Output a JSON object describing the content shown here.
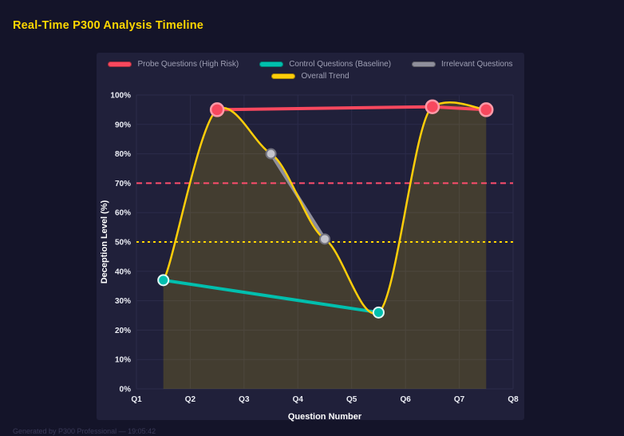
{
  "page": {
    "title": "Real-Time P300 Analysis Timeline",
    "footer": "Generated by P300 Professional — 19:05:42"
  },
  "theme": {
    "background": "#141429",
    "panel": "#20203a",
    "title": "#ffd700",
    "legend_text": "#9fa0b5",
    "tick_text": "#eceef5",
    "grid": "#2b2b4a",
    "footer_text": "#3a3a58"
  },
  "chart_data": {
    "type": "line",
    "title": "Real-Time P300 Analysis Timeline",
    "xlabel": "Question Number",
    "ylabel": "Deception Level (%)",
    "x_tick_labels": [
      "Q1",
      "Q2",
      "Q3",
      "Q4",
      "Q5",
      "Q6",
      "Q7",
      "Q8"
    ],
    "x_tick_values": [
      1,
      2,
      3,
      4,
      5,
      6,
      7,
      8
    ],
    "xlim": [
      1,
      8
    ],
    "ylim": [
      0,
      100
    ],
    "y_ticks": [
      0,
      10,
      20,
      30,
      40,
      50,
      60,
      70,
      80,
      90,
      100
    ],
    "y_tick_suffix": "%",
    "grid": true,
    "legend_position": "top",
    "series": [
      {
        "name": "Probe Questions (High Risk)",
        "color": "#f8485e",
        "marker_fill": "#f8485e",
        "marker_stroke": "#ff9aa8",
        "marker_radius": 8,
        "marker_stroke_width": 2.5,
        "line_width": 4,
        "smooth": false,
        "fill": false,
        "points": [
          [
            2.5,
            95
          ],
          [
            6.5,
            96
          ],
          [
            7.5,
            95
          ]
        ]
      },
      {
        "name": "Control Questions (Baseline)",
        "color": "#00bfae",
        "marker_fill": "#00bfae",
        "marker_stroke": "#e2fbf7",
        "marker_radius": 6.5,
        "marker_stroke_width": 2,
        "line_width": 4,
        "smooth": false,
        "fill": false,
        "points": [
          [
            1.5,
            37
          ],
          [
            5.5,
            26
          ]
        ]
      },
      {
        "name": "Irrelevant Questions",
        "color": "#8f8f9c",
        "marker_fill": "#c4c4cc",
        "marker_stroke": "#73737f",
        "marker_radius": 6,
        "marker_stroke_width": 2,
        "line_width": 4,
        "smooth": false,
        "fill": false,
        "points": [
          [
            3.5,
            80
          ],
          [
            4.5,
            51
          ]
        ]
      },
      {
        "name": "Overall Trend",
        "color": "#ffce0a",
        "marker_radius": 0,
        "marker_stroke_width": 0,
        "line_width": 2.5,
        "smooth": true,
        "fill": true,
        "fill_color": "#ffd700",
        "fill_opacity": 0.16,
        "points": [
          [
            1.5,
            37
          ],
          [
            2.5,
            95
          ],
          [
            3.5,
            80
          ],
          [
            4.5,
            51
          ],
          [
            5.5,
            26
          ],
          [
            6.5,
            96
          ],
          [
            7.5,
            95
          ]
        ]
      }
    ],
    "reference_lines": [
      {
        "y": 70,
        "color": "#ff4d6d",
        "dash": "7 5",
        "width": 2
      },
      {
        "y": 50,
        "color": "#ffd700",
        "dash": "3 4",
        "width": 2
      }
    ]
  }
}
